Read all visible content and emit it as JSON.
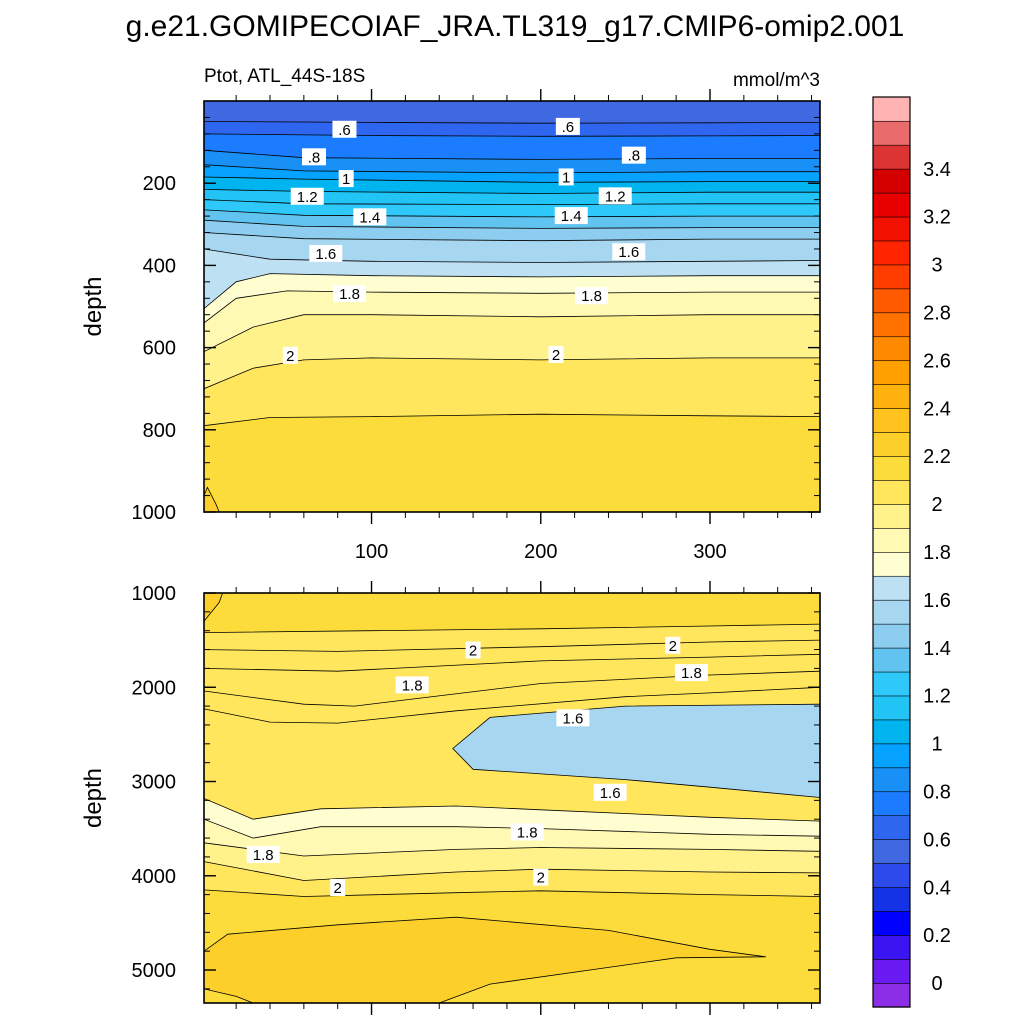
{
  "figure": {
    "title": "g.e21.GOMIPECOIAF_JRA.TL319_g17.CMIP6-omip2.001",
    "subtitle_left": "Ptot, ATL_44S-18S",
    "units": "mmol/m^3"
  },
  "chart_data": [
    {
      "type": "contour",
      "panel": "upper",
      "ylabel": "depth",
      "xlabel": "",
      "xlim": [
        1,
        365
      ],
      "ylim": [
        1000,
        0
      ],
      "x_ticks": [
        100,
        200,
        300
      ],
      "x_tick_labels": [
        "100",
        "200",
        "300"
      ],
      "y_ticks": [
        200,
        400,
        600,
        800,
        1000
      ],
      "y_tick_labels": [
        "200",
        "400",
        "600",
        "800",
        "1000"
      ],
      "contour_interval": 0.1,
      "contours": [
        {
          "level": 0.6,
          "points": [
            [
              1,
              50
            ],
            [
              100,
              52
            ],
            [
              200,
              54
            ],
            [
              300,
              53
            ],
            [
              365,
              52
            ]
          ]
        },
        {
          "level": 0.7,
          "points": [
            [
              1,
              80
            ],
            [
              100,
              84
            ],
            [
              200,
              86
            ],
            [
              300,
              85
            ],
            [
              365,
              84
            ]
          ]
        },
        {
          "level": 0.8,
          "points": [
            [
              1,
              120
            ],
            [
              60,
              138
            ],
            [
              200,
              142
            ],
            [
              300,
              140
            ],
            [
              365,
              140
            ]
          ]
        },
        {
          "level": 0.9,
          "points": [
            [
              1,
              155
            ],
            [
              60,
              170
            ],
            [
              200,
              175
            ],
            [
              300,
              172
            ],
            [
              365,
              172
            ]
          ]
        },
        {
          "level": 1.0,
          "points": [
            [
              1,
              185
            ],
            [
              60,
              190
            ],
            [
              200,
              198
            ],
            [
              300,
              196
            ],
            [
              365,
              196
            ]
          ]
        },
        {
          "level": 1.1,
          "points": [
            [
              1,
              215
            ],
            [
              60,
              220
            ],
            [
              200,
              225
            ],
            [
              300,
              222
            ],
            [
              365,
              222
            ]
          ]
        },
        {
          "level": 1.2,
          "points": [
            [
              1,
              240
            ],
            [
              60,
              250
            ],
            [
              200,
              252
            ],
            [
              300,
              250
            ],
            [
              365,
              250
            ]
          ]
        },
        {
          "level": 1.3,
          "points": [
            [
              1,
              265
            ],
            [
              60,
              278
            ],
            [
              200,
              282
            ],
            [
              300,
              280
            ],
            [
              365,
              280
            ]
          ]
        },
        {
          "level": 1.4,
          "points": [
            [
              1,
              290
            ],
            [
              60,
              305
            ],
            [
              200,
              310
            ],
            [
              300,
              308
            ],
            [
              365,
              308
            ]
          ]
        },
        {
          "level": 1.5,
          "points": [
            [
              1,
              320
            ],
            [
              60,
              335
            ],
            [
              200,
              340
            ],
            [
              300,
              336
            ],
            [
              365,
              336
            ]
          ]
        },
        {
          "level": 1.6,
          "points": [
            [
              1,
              360
            ],
            [
              40,
              385
            ],
            [
              100,
              390
            ],
            [
              200,
              393
            ],
            [
              300,
              390
            ],
            [
              365,
              388
            ]
          ]
        },
        {
          "level": 1.7,
          "points": [
            [
              1,
              505
            ],
            [
              20,
              440
            ],
            [
              40,
              420
            ],
            [
              100,
              425
            ],
            [
              200,
              428
            ],
            [
              300,
              425
            ],
            [
              365,
              425
            ]
          ]
        },
        {
          "level": 1.8,
          "points": [
            [
              1,
              540
            ],
            [
              20,
              480
            ],
            [
              50,
              462
            ],
            [
              100,
              465
            ],
            [
              200,
              468
            ],
            [
              300,
              465
            ],
            [
              365,
              465
            ]
          ]
        },
        {
          "level": 1.9,
          "points": [
            [
              1,
              610
            ],
            [
              30,
              550
            ],
            [
              60,
              520
            ],
            [
              100,
              520
            ],
            [
              200,
              525
            ],
            [
              300,
              520
            ],
            [
              365,
              520
            ]
          ]
        },
        {
          "level": 2.0,
          "points": [
            [
              1,
              700
            ],
            [
              30,
              650
            ],
            [
              60,
              630
            ],
            [
              100,
              625
            ],
            [
              200,
              630
            ],
            [
              300,
              625
            ],
            [
              365,
              625
            ]
          ]
        },
        {
          "level": 2.1,
          "points": [
            [
              1,
              790
            ],
            [
              40,
              770
            ],
            [
              100,
              768
            ],
            [
              200,
              762
            ],
            [
              300,
              766
            ],
            [
              365,
              768
            ]
          ]
        },
        {
          "level": 2.2,
          "points": [
            [
              1,
              960
            ],
            [
              3,
              940
            ],
            [
              8,
              980
            ],
            [
              10,
              1000
            ]
          ]
        }
      ],
      "contour_labels": [
        {
          "text": ".6",
          "x": 84,
          "y": 70
        },
        {
          "text": ".6",
          "x": 216,
          "y": 63
        },
        {
          "text": ".8",
          "x": 66,
          "y": 137
        },
        {
          "text": ".8",
          "x": 255,
          "y": 133
        },
        {
          "text": "1",
          "x": 85,
          "y": 190
        },
        {
          "text": "1",
          "x": 215,
          "y": 186
        },
        {
          "text": "1.2",
          "x": 62,
          "y": 233
        },
        {
          "text": "1.2",
          "x": 244,
          "y": 232
        },
        {
          "text": "1.4",
          "x": 99,
          "y": 283
        },
        {
          "text": "1.4",
          "x": 218,
          "y": 280
        },
        {
          "text": "1.6",
          "x": 73,
          "y": 372
        },
        {
          "text": "1.6",
          "x": 252,
          "y": 368
        },
        {
          "text": "1.8",
          "x": 87,
          "y": 470
        },
        {
          "text": "1.8",
          "x": 230,
          "y": 475
        },
        {
          "text": "2",
          "x": 52,
          "y": 620
        },
        {
          "text": "2",
          "x": 209,
          "y": 618
        }
      ]
    },
    {
      "type": "contour",
      "panel": "lower",
      "ylabel": "depth",
      "xlabel": "",
      "xlim": [
        1,
        365
      ],
      "ylim": [
        5350,
        1000
      ],
      "x_ticks": [
        100,
        200,
        300
      ],
      "x_tick_labels": [
        "",
        "",
        ""
      ],
      "y_ticks": [
        1000,
        2000,
        3000,
        4000,
        5000
      ],
      "y_tick_labels": [
        "1000",
        "2000",
        "3000",
        "4000",
        "5000"
      ],
      "contour_interval": 0.1,
      "contours": [
        {
          "level": 2.2,
          "points": [
            [
              1,
              1300
            ],
            [
              10,
              1100
            ],
            [
              12,
              1000
            ]
          ]
        },
        {
          "level": 2.1,
          "points": [
            [
              1,
              1420
            ],
            [
              100,
              1400
            ],
            [
              200,
              1380
            ],
            [
              300,
              1350
            ],
            [
              365,
              1330
            ]
          ]
        },
        {
          "level": 2.0,
          "points": [
            [
              1,
              1600
            ],
            [
              80,
              1620
            ],
            [
              200,
              1570
            ],
            [
              300,
              1520
            ],
            [
              365,
              1500
            ]
          ]
        },
        {
          "level": 1.9,
          "points": [
            [
              1,
              1800
            ],
            [
              80,
              1830
            ],
            [
              200,
              1720
            ],
            [
              300,
              1680
            ],
            [
              365,
              1650
            ]
          ]
        },
        {
          "level": 1.8,
          "points": [
            [
              1,
              2040
            ],
            [
              60,
              2180
            ],
            [
              90,
              2200
            ],
            [
              200,
              1960
            ],
            [
              300,
              1870
            ],
            [
              365,
              1830
            ]
          ]
        },
        {
          "level": 1.7,
          "points": [
            [
              1,
              2230
            ],
            [
              40,
              2370
            ],
            [
              80,
              2380
            ],
            [
              150,
              2250
            ],
            [
              250,
              2100
            ],
            [
              300,
              2060
            ],
            [
              365,
              2000
            ]
          ]
        },
        {
          "level": 1.6,
          "points": [
            [
              365,
              2180
            ],
            [
              250,
              2200
            ],
            [
              170,
              2320
            ],
            [
              148,
              2650
            ],
            [
              160,
              2870
            ],
            [
              250,
              2980
            ],
            [
              300,
              3060
            ],
            [
              365,
              3170
            ]
          ]
        },
        {
          "level": 1.7,
          "points": [
            [
              1,
              3180
            ],
            [
              30,
              3400
            ],
            [
              70,
              3290
            ],
            [
              150,
              3260
            ],
            [
              200,
              3300
            ],
            [
              300,
              3380
            ],
            [
              365,
              3420
            ]
          ]
        },
        {
          "level": 1.8,
          "points": [
            [
              1,
              3400
            ],
            [
              30,
              3600
            ],
            [
              70,
              3480
            ],
            [
              150,
              3480
            ],
            [
              200,
              3500
            ],
            [
              300,
              3560
            ],
            [
              365,
              3580
            ]
          ]
        },
        {
          "level": 1.9,
          "points": [
            [
              1,
              3650
            ],
            [
              60,
              3790
            ],
            [
              150,
              3720
            ],
            [
              200,
              3700
            ],
            [
              300,
              3720
            ],
            [
              365,
              3740
            ]
          ]
        },
        {
          "level": 2.0,
          "points": [
            [
              1,
              3850
            ],
            [
              60,
              4050
            ],
            [
              150,
              3960
            ],
            [
              200,
              3930
            ],
            [
              300,
              3960
            ],
            [
              365,
              3970
            ]
          ]
        },
        {
          "level": 2.1,
          "points": [
            [
              1,
              4150
            ],
            [
              60,
              4220
            ],
            [
              150,
              4180
            ],
            [
              200,
              4160
            ],
            [
              300,
              4200
            ],
            [
              365,
              4220
            ]
          ]
        },
        {
          "level": 2.2,
          "points": [
            [
              1,
              4800
            ],
            [
              15,
              4620
            ],
            [
              80,
              4520
            ],
            [
              150,
              4440
            ],
            [
              240,
              4580
            ],
            [
              300,
              4780
            ],
            [
              333,
              4860
            ],
            [
              280,
              4870
            ],
            [
              170,
              5150
            ],
            [
              140,
              5350
            ]
          ]
        },
        {
          "level": 2.2,
          "points": [
            [
              1,
              5200
            ],
            [
              20,
              5280
            ],
            [
              30,
              5350
            ]
          ]
        }
      ],
      "contour_labels": [
        {
          "text": "2",
          "x": 160,
          "y": 1610
        },
        {
          "text": "2",
          "x": 278,
          "y": 1560
        },
        {
          "text": "1.8",
          "x": 124,
          "y": 1980
        },
        {
          "text": "1.8",
          "x": 289,
          "y": 1850
        },
        {
          "text": "1.6",
          "x": 219,
          "y": 2330
        },
        {
          "text": "1.6",
          "x": 241,
          "y": 3120
        },
        {
          "text": "1.8",
          "x": 36,
          "y": 3780
        },
        {
          "text": "1.8",
          "x": 192,
          "y": 3540
        },
        {
          "text": "2",
          "x": 80,
          "y": 4130
        },
        {
          "text": "2",
          "x": 200,
          "y": 4020
        }
      ]
    }
  ],
  "colorbar": {
    "levels": [
      -0.1,
      0,
      0.1,
      0.2,
      0.3,
      0.4,
      0.5,
      0.6,
      0.7,
      0.8,
      0.9,
      1.0,
      1.1,
      1.2,
      1.3,
      1.4,
      1.5,
      1.6,
      1.7,
      1.8,
      1.9,
      2.0,
      2.1,
      2.2,
      2.3,
      2.4,
      2.5,
      2.6,
      2.7,
      2.8,
      2.9,
      3.0,
      3.1,
      3.2,
      3.3,
      3.4,
      3.5,
      3.6
    ],
    "colors": [
      "#8c2ee6",
      "#6a1bf2",
      "#3b14f2",
      "#0000ff",
      "#1432e6",
      "#2c4bea",
      "#4068e0",
      "#2f66f0",
      "#1c7cff",
      "#1890f5",
      "#06a2ff",
      "#00b4f0",
      "#22c3f5",
      "#2ec8fa",
      "#61c4f0",
      "#8dcdef",
      "#a6d6f0",
      "#bde1f2",
      "#fffed0",
      "#fff9b3",
      "#fff28a",
      "#ffe65c",
      "#fbdc3a",
      "#fccf2a",
      "#ffc21e",
      "#ffb20d",
      "#ffa000",
      "#ff8a00",
      "#ff7200",
      "#ff5a00",
      "#ff3d00",
      "#ff2500",
      "#f21000",
      "#e80000",
      "#d40000",
      "#dc3333",
      "#ea6b6b",
      "#ffb3b3"
    ],
    "tick_labels": [
      "0",
      "0.2",
      "0.4",
      "0.6",
      "0.8",
      "1",
      "1.2",
      "1.4",
      "1.6",
      "1.8",
      "2",
      "2.2",
      "2.4",
      "2.6",
      "2.8",
      "3",
      "3.2",
      "3.4"
    ],
    "tick_values": [
      0,
      0.2,
      0.4,
      0.6,
      0.8,
      1.0,
      1.2,
      1.4,
      1.6,
      1.8,
      2.0,
      2.2,
      2.4,
      2.6,
      2.8,
      3.0,
      3.2,
      3.4
    ]
  }
}
